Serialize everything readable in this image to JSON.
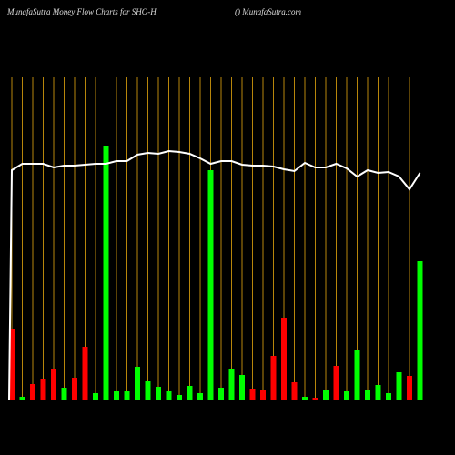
{
  "chart_data": {
    "type": "bar",
    "title": "MunafaSutra  Money Flow  Charts for SHO-H",
    "subtitle": "() MunafaSutra.com",
    "ylim": [
      0,
      355
    ],
    "grid": true,
    "grid_color": "#b8860b",
    "values": [
      79,
      4,
      18,
      24,
      34,
      14,
      25,
      59,
      8,
      280,
      10,
      10,
      37,
      21,
      15,
      10,
      6,
      16,
      8,
      253,
      14,
      35,
      28,
      13,
      11,
      49,
      91,
      20,
      4,
      3,
      11,
      38,
      10,
      55,
      11,
      17,
      8,
      31,
      27,
      153
    ],
    "colors": [
      "#ff0000",
      "#00ff00",
      "#ff0000",
      "#ff0000",
      "#ff0000",
      "#00ff00",
      "#ff0000",
      "#ff0000",
      "#00ff00",
      "#00ff00",
      "#00ff00",
      "#00ff00",
      "#00ff00",
      "#00ff00",
      "#00ff00",
      "#00ff00",
      "#00ff00",
      "#00ff00",
      "#00ff00",
      "#00ff00",
      "#00ff00",
      "#00ff00",
      "#00ff00",
      "#ff0000",
      "#ff0000",
      "#ff0000",
      "#ff0000",
      "#ff0000",
      "#00ff00",
      "#ff0000",
      "#00ff00",
      "#ff0000",
      "#00ff00",
      "#00ff00",
      "#00ff00",
      "#00ff00",
      "#00ff00",
      "#00ff00",
      "#ff0000",
      "#00ff00"
    ],
    "line": {
      "color": "#ffffff",
      "values": [
        253,
        260,
        260,
        260,
        256,
        258,
        258,
        259,
        260,
        260,
        263,
        263,
        270,
        272,
        271,
        274,
        273,
        271,
        266,
        260,
        263,
        263,
        259,
        258,
        258,
        257,
        254,
        252,
        261,
        256,
        256,
        260,
        255,
        246,
        253,
        250,
        251,
        246,
        232,
        250
      ]
    }
  }
}
